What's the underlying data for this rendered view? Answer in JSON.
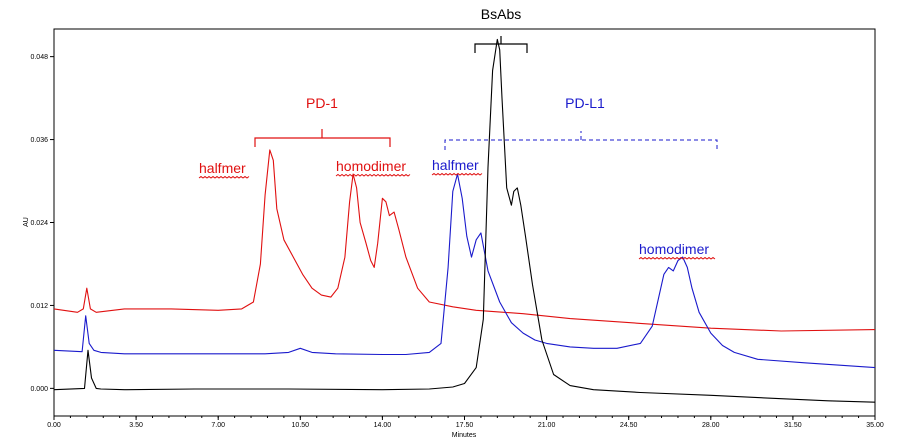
{
  "chart_data": {
    "type": "line",
    "title": "BsAbs",
    "xlabel": "Minutes",
    "ylabel": "AU",
    "xlim": [
      0,
      35
    ],
    "ylim": [
      -0.004,
      0.052
    ],
    "x_ticks": [
      "0.00",
      "3.50",
      "7.00",
      "10.50",
      "14.00",
      "17.50",
      "21.00",
      "24.50",
      "28.00",
      "31.50",
      "35.00"
    ],
    "y_ticks": [
      "0.000",
      "0.012",
      "0.024",
      "0.036",
      "0.048"
    ],
    "series": [
      {
        "name": "PD-1",
        "color": "#e01010",
        "x": [
          0,
          1,
          1.25,
          1.4,
          1.55,
          1.8,
          3,
          5,
          7,
          8,
          8.5,
          8.8,
          9.0,
          9.2,
          9.35,
          9.5,
          9.8,
          10.2,
          10.6,
          11,
          11.4,
          11.8,
          12.1,
          12.4,
          12.6,
          12.75,
          12.9,
          13.05,
          13.3,
          13.5,
          13.65,
          13.8,
          14.0,
          14.15,
          14.3,
          14.5,
          14.7,
          15.0,
          15.5,
          16,
          17,
          18,
          20,
          22,
          25,
          28,
          31,
          35
        ],
        "y": [
          0.0115,
          0.011,
          0.0115,
          0.0145,
          0.0115,
          0.011,
          0.0115,
          0.0115,
          0.0113,
          0.0115,
          0.0125,
          0.018,
          0.028,
          0.0345,
          0.033,
          0.026,
          0.0215,
          0.019,
          0.0165,
          0.0145,
          0.0135,
          0.0132,
          0.0145,
          0.019,
          0.027,
          0.031,
          0.029,
          0.024,
          0.021,
          0.0185,
          0.0175,
          0.021,
          0.0275,
          0.027,
          0.025,
          0.0255,
          0.023,
          0.019,
          0.0145,
          0.0125,
          0.0118,
          0.0113,
          0.0108,
          0.0101,
          0.0094,
          0.0087,
          0.0083,
          0.0085
        ]
      },
      {
        "name": "PD-L1",
        "color": "#1a1acc",
        "x": [
          0,
          1.2,
          1.35,
          1.5,
          1.7,
          2,
          3,
          5,
          7,
          9,
          10,
          10.5,
          11,
          12,
          14,
          15,
          16,
          16.5,
          16.8,
          17.0,
          17.2,
          17.4,
          17.6,
          17.8,
          18.0,
          18.2,
          18.5,
          19,
          19.5,
          20,
          20.5,
          21,
          22,
          23,
          24,
          25,
          25.5,
          26.0,
          26.2,
          26.4,
          26.6,
          26.8,
          27.0,
          27.2,
          27.5,
          28,
          28.5,
          29,
          30,
          32,
          35
        ],
        "y": [
          0.0055,
          0.0053,
          0.0105,
          0.0065,
          0.0055,
          0.0052,
          0.005,
          0.005,
          0.005,
          0.005,
          0.0052,
          0.0058,
          0.0052,
          0.005,
          0.0049,
          0.0049,
          0.0052,
          0.0065,
          0.0175,
          0.0285,
          0.031,
          0.0275,
          0.022,
          0.019,
          0.0215,
          0.0225,
          0.017,
          0.0125,
          0.0095,
          0.008,
          0.007,
          0.0065,
          0.006,
          0.0058,
          0.0058,
          0.0065,
          0.009,
          0.0165,
          0.0175,
          0.017,
          0.0185,
          0.019,
          0.0175,
          0.0145,
          0.011,
          0.008,
          0.0062,
          0.0052,
          0.0042,
          0.0037,
          0.003
        ]
      },
      {
        "name": "BsAbs",
        "color": "#000000",
        "x": [
          0,
          1.3,
          1.45,
          1.6,
          1.8,
          2,
          3,
          6,
          10,
          14,
          16,
          17,
          17.5,
          18.0,
          18.3,
          18.5,
          18.7,
          18.9,
          19.0,
          19.1,
          19.3,
          19.5,
          19.6,
          19.75,
          19.9,
          20.1,
          20.4,
          20.8,
          21.3,
          22,
          23,
          25,
          28,
          31,
          33,
          35
        ],
        "y": [
          -0.0002,
          0.0,
          0.0055,
          0.0015,
          0.0,
          -0.0001,
          -0.0002,
          -0.0001,
          -0.0001,
          -0.0002,
          -0.0001,
          0.0002,
          0.0007,
          0.003,
          0.01,
          0.032,
          0.046,
          0.0505,
          0.049,
          0.042,
          0.029,
          0.0265,
          0.0285,
          0.029,
          0.0265,
          0.022,
          0.015,
          0.007,
          0.002,
          0.0004,
          -0.0002,
          -0.0006,
          -0.001,
          -0.0015,
          -0.0018,
          -0.002
        ]
      }
    ],
    "annotations": [
      {
        "id": "pd1_label",
        "text": "PD-1",
        "color": "#e01010"
      },
      {
        "id": "pd1_halfmer",
        "text": "halfmer",
        "color": "#e01010"
      },
      {
        "id": "pd1_homodimer",
        "text": "homodimer",
        "color": "#e01010"
      },
      {
        "id": "pdl1_label",
        "text": "PD-L1",
        "color": "#1a1acc"
      },
      {
        "id": "pdl1_halfmer",
        "text": "halfmer",
        "color": "#1a1acc"
      },
      {
        "id": "pdl1_homodimer",
        "text": "homodimer",
        "color": "#1a1acc"
      }
    ]
  }
}
